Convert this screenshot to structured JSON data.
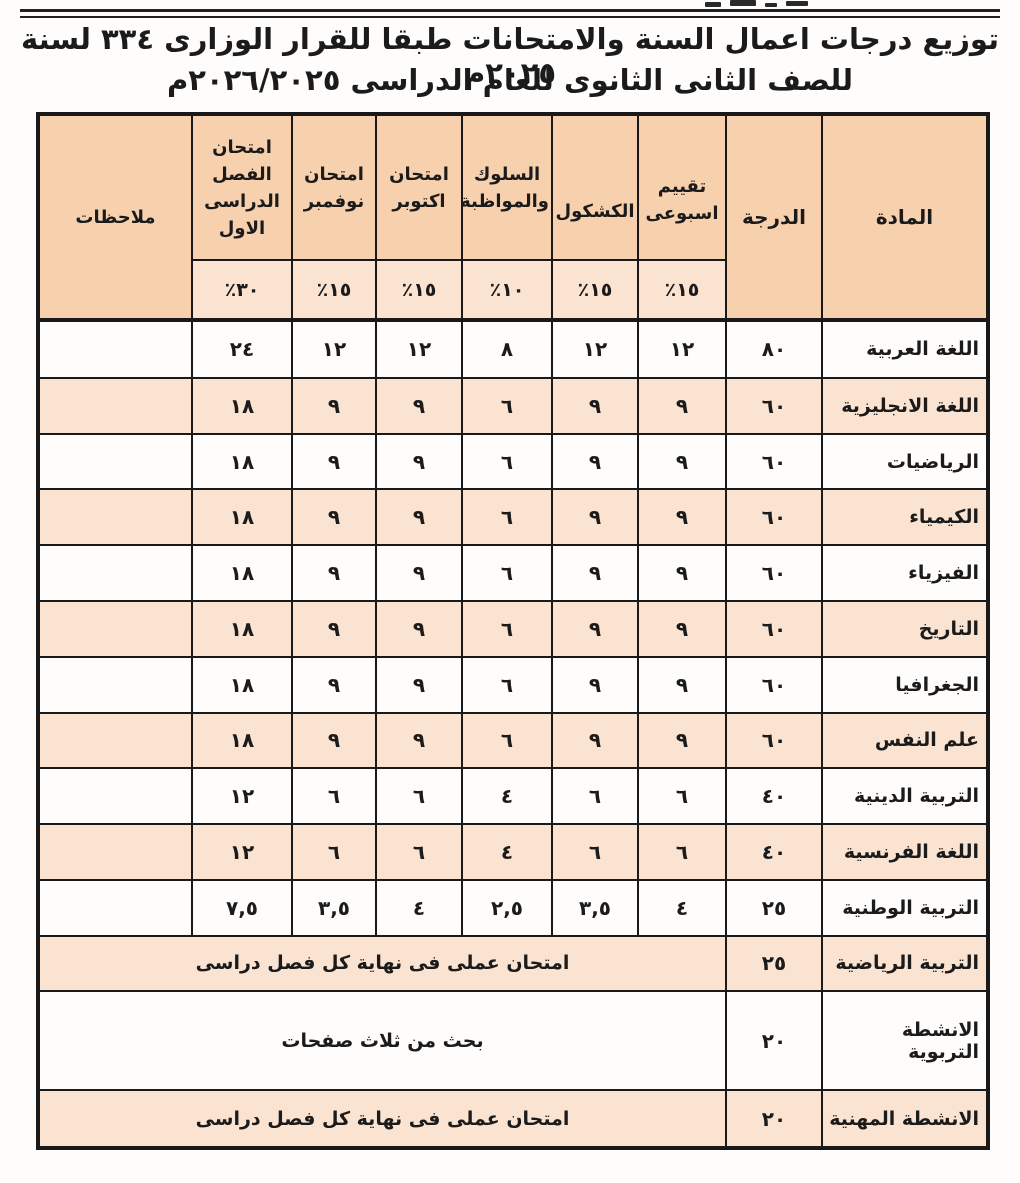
{
  "title": {
    "line1": "توزيع درجات اعمال السنة والامتحانات طبقا للقرار الوزارى ٣٣٤ لسنة ٢٠٢٥م",
    "line2": "للصف الثانى الثانوى للعام الدراسى ٢٠٢٦/٢٠٢٥م"
  },
  "colors": {
    "header_bg": "#f7d0ae",
    "stripe_bg": "#fbe3d2",
    "line": "#191919"
  },
  "table": {
    "subject_header": "المادة",
    "grade_header": "الدرجة",
    "notes_header": "ملاحظات",
    "score_columns": [
      {
        "label": "تقييم اسبوعى",
        "percent": "١٥٪"
      },
      {
        "label": "الكشكول",
        "percent": "١٥٪"
      },
      {
        "label": "السلوك والمواظبة",
        "percent": "١٠٪"
      },
      {
        "label": "امتحان اكتوبر",
        "percent": "١٥٪"
      },
      {
        "label": "امتحان نوفمبر",
        "percent": "١٥٪"
      },
      {
        "label": "امتحان الفصل الدراسى الاول",
        "percent": "٣٠٪"
      }
    ],
    "rows": [
      {
        "subject": "اللغة العربية",
        "grade": "٨٠",
        "values": [
          "١٢",
          "١٢",
          "٨",
          "١٢",
          "١٢",
          "٢٤"
        ],
        "note": ""
      },
      {
        "subject": "اللغة الانجليزية",
        "grade": "٦٠",
        "values": [
          "٩",
          "٩",
          "٦",
          "٩",
          "٩",
          "١٨"
        ],
        "note": ""
      },
      {
        "subject": "الرياضيات",
        "grade": "٦٠",
        "values": [
          "٩",
          "٩",
          "٦",
          "٩",
          "٩",
          "١٨"
        ],
        "note": ""
      },
      {
        "subject": "الكيمياء",
        "grade": "٦٠",
        "values": [
          "٩",
          "٩",
          "٦",
          "٩",
          "٩",
          "١٨"
        ],
        "note": ""
      },
      {
        "subject": "الفيزياء",
        "grade": "٦٠",
        "values": [
          "٩",
          "٩",
          "٦",
          "٩",
          "٩",
          "١٨"
        ],
        "note": ""
      },
      {
        "subject": "التاريخ",
        "grade": "٦٠",
        "values": [
          "٩",
          "٩",
          "٦",
          "٩",
          "٩",
          "١٨"
        ],
        "note": ""
      },
      {
        "subject": "الجغرافيا",
        "grade": "٦٠",
        "values": [
          "٩",
          "٩",
          "٦",
          "٩",
          "٩",
          "١٨"
        ],
        "note": ""
      },
      {
        "subject": "علم النفس",
        "grade": "٦٠",
        "values": [
          "٩",
          "٩",
          "٦",
          "٩",
          "٩",
          "١٨"
        ],
        "note": ""
      },
      {
        "subject": "التربية الدينية",
        "grade": "٤٠",
        "values": [
          "٦",
          "٦",
          "٤",
          "٦",
          "٦",
          "١٢"
        ],
        "note": ""
      },
      {
        "subject": "اللغة الفرنسية",
        "grade": "٤٠",
        "values": [
          "٦",
          "٦",
          "٤",
          "٦",
          "٦",
          "١٢"
        ],
        "note": ""
      },
      {
        "subject": "التربية الوطنية",
        "grade": "٢٥",
        "values": [
          "٤",
          "٣,٥",
          "٢,٥",
          "٤",
          "٣,٥",
          "٧,٥"
        ],
        "note": ""
      },
      {
        "subject": "التربية الرياضية",
        "grade": "٢٥",
        "merged": "امتحان عملى فى نهاية كل فصل دراسى"
      },
      {
        "subject": "الانشطة التربوية",
        "grade": "٢٠",
        "merged": "بحث من ثلاث صفحات"
      },
      {
        "subject": "الانشطة المهنية",
        "grade": "٢٠",
        "merged": "امتحان عملى فى نهاية كل فصل دراسى"
      }
    ]
  }
}
